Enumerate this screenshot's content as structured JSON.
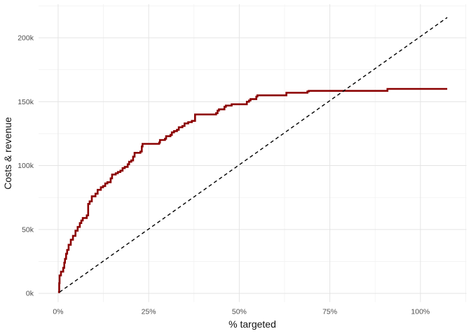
{
  "chart_data": {
    "type": "line",
    "title": "",
    "xlabel": "% targeted",
    "ylabel": "Costs & revenue",
    "xlim": [
      -5.4,
      112.7
    ],
    "ylim": [
      -6.8,
      226.3
    ],
    "x_unit": "percent",
    "y_unit": "thousands",
    "grid": "on",
    "legend": "none",
    "x_ticks": [
      {
        "value": 0,
        "label": "0%"
      },
      {
        "value": 25,
        "label": "25%"
      },
      {
        "value": 50,
        "label": "50%"
      },
      {
        "value": 75,
        "label": "75%"
      },
      {
        "value": 100,
        "label": "100%"
      }
    ],
    "y_ticks": [
      {
        "value": 0,
        "label": "0k"
      },
      {
        "value": 50,
        "label": "50k"
      },
      {
        "value": 100,
        "label": "100k"
      },
      {
        "value": 150,
        "label": "150k"
      },
      {
        "value": 200,
        "label": "200k"
      }
    ],
    "x_minor": [
      12.5,
      37.5,
      62.5,
      87.5,
      112.5
    ],
    "y_minor": [
      25,
      75,
      125,
      175,
      225
    ],
    "colors": {
      "curve": "#8B0000",
      "baseline": "#000000",
      "grid_major": "#E4E4E4",
      "grid_minor": "#F2F2F2",
      "tick_text": "#4D4D4D",
      "axis_title_text": "#111111",
      "background": "#FFFFFF"
    },
    "series": [
      {
        "name": "cumulative-revenue-step-curve",
        "type": "step",
        "color_key": "curve",
        "stroke_width": 2.6,
        "points": [
          [
            0,
            1
          ],
          [
            0.3,
            8
          ],
          [
            0.4,
            14
          ],
          [
            0.8,
            17
          ],
          [
            1.4,
            20
          ],
          [
            1.7,
            24
          ],
          [
            1.9,
            27
          ],
          [
            2.2,
            31
          ],
          [
            2.5,
            34
          ],
          [
            2.9,
            38
          ],
          [
            3.5,
            42
          ],
          [
            4.1,
            45
          ],
          [
            4.8,
            49
          ],
          [
            5.4,
            52
          ],
          [
            6.0,
            55
          ],
          [
            6.4,
            57
          ],
          [
            6.8,
            59
          ],
          [
            7.9,
            61
          ],
          [
            8.3,
            70
          ],
          [
            8.7,
            72
          ],
          [
            9.3,
            76
          ],
          [
            10.3,
            78
          ],
          [
            10.9,
            81
          ],
          [
            11.8,
            83
          ],
          [
            12.4,
            84
          ],
          [
            13.0,
            86
          ],
          [
            13.6,
            87
          ],
          [
            14.5,
            90
          ],
          [
            14.9,
            93
          ],
          [
            15.9,
            94
          ],
          [
            16.5,
            95
          ],
          [
            17.2,
            96
          ],
          [
            17.8,
            98
          ],
          [
            18.4,
            99
          ],
          [
            19.2,
            101
          ],
          [
            19.6,
            103
          ],
          [
            20.2,
            104
          ],
          [
            20.7,
            107
          ],
          [
            21.1,
            110
          ],
          [
            22.7,
            111
          ],
          [
            23.1,
            115
          ],
          [
            23.3,
            117
          ],
          [
            27.9,
            118
          ],
          [
            28.1,
            120
          ],
          [
            29.5,
            121
          ],
          [
            29.8,
            123
          ],
          [
            31.0,
            124
          ],
          [
            31.4,
            126
          ],
          [
            32.0,
            127
          ],
          [
            32.8,
            128
          ],
          [
            33.3,
            130
          ],
          [
            34.3,
            131
          ],
          [
            34.9,
            133
          ],
          [
            35.9,
            134
          ],
          [
            36.9,
            135
          ],
          [
            37.8,
            140
          ],
          [
            43.6,
            141
          ],
          [
            44.0,
            143
          ],
          [
            44.4,
            144
          ],
          [
            45.9,
            146
          ],
          [
            46.3,
            147
          ],
          [
            47.9,
            148
          ],
          [
            52.1,
            150
          ],
          [
            52.7,
            151
          ],
          [
            53.1,
            152
          ],
          [
            54.7,
            154
          ],
          [
            55.0,
            155
          ],
          [
            63.0,
            157
          ],
          [
            68.8,
            158
          ],
          [
            69.2,
            158.5
          ],
          [
            90.9,
            160
          ],
          [
            107.4,
            160
          ]
        ]
      },
      {
        "name": "baseline-diagonal",
        "type": "line",
        "color_key": "baseline",
        "stroke_width": 1.4,
        "dash": "5,4",
        "points": [
          [
            0.4,
            1
          ],
          [
            107.4,
            215.9
          ]
        ]
      }
    ]
  }
}
